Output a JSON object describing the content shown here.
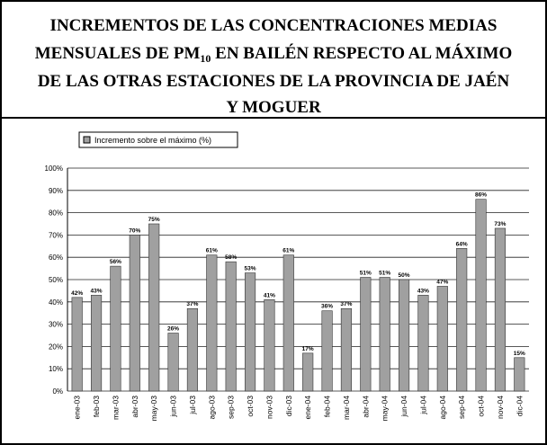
{
  "chart_data": {
    "type": "bar",
    "title": {
      "line1": "INCREMENTOS DE LAS CONCENTRACIONES MEDIAS",
      "line2_start": "MENSUALES DE PM",
      "line2_subscript": "10",
      "line2_end": " EN BAILÉN RESPECTO AL MÁXIMO",
      "line3": "DE LAS OTRAS ESTACIONES DE LA PROVINCIA DE JAÉN",
      "line4": "Y MOGUER"
    },
    "legend": "Incremento sobre el máximo (%)",
    "color": "#a0a0a0",
    "categories": [
      "ene-03",
      "feb-03",
      "mar-03",
      "abr-03",
      "may-03",
      "jun-03",
      "jul-03",
      "ago-03",
      "sep-03",
      "oct-03",
      "nov-03",
      "dic-03",
      "ene-04",
      "feb-04",
      "mar-04",
      "abr-04",
      "may-04",
      "jun-04",
      "jul-04",
      "ago-04",
      "sep-04",
      "oct-04",
      "nov-04",
      "dic-04"
    ],
    "values": [
      42,
      43,
      56,
      70,
      75,
      26,
      37,
      61,
      58,
      53,
      41,
      61,
      17,
      36,
      37,
      51,
      51,
      50,
      43,
      47,
      64,
      86,
      73,
      15
    ],
    "value_labels": [
      "42%",
      "43%",
      "56%",
      "70%",
      "75%",
      "26%",
      "37%",
      "61%",
      "58%",
      "53%",
      "41%",
      "61%",
      "17%",
      "36%",
      "37%",
      "51%",
      "51%",
      "50%",
      "43%",
      "47%",
      "64%",
      "86%",
      "73%",
      "15%"
    ],
    "ylim": [
      0,
      100
    ],
    "yticks": [
      {
        "value": 0,
        "label": "0%"
      },
      {
        "value": 10,
        "label": "10%"
      },
      {
        "value": 20,
        "label": "20%"
      },
      {
        "value": 30,
        "label": "30%"
      },
      {
        "value": 40,
        "label": "40%"
      },
      {
        "value": 50,
        "label": "50%"
      },
      {
        "value": 60,
        "label": "60%"
      },
      {
        "value": 70,
        "label": "70%"
      },
      {
        "value": 80,
        "label": "80%"
      },
      {
        "value": 90,
        "label": "90%"
      },
      {
        "value": 100,
        "label": "100%"
      }
    ],
    "grid": true
  }
}
